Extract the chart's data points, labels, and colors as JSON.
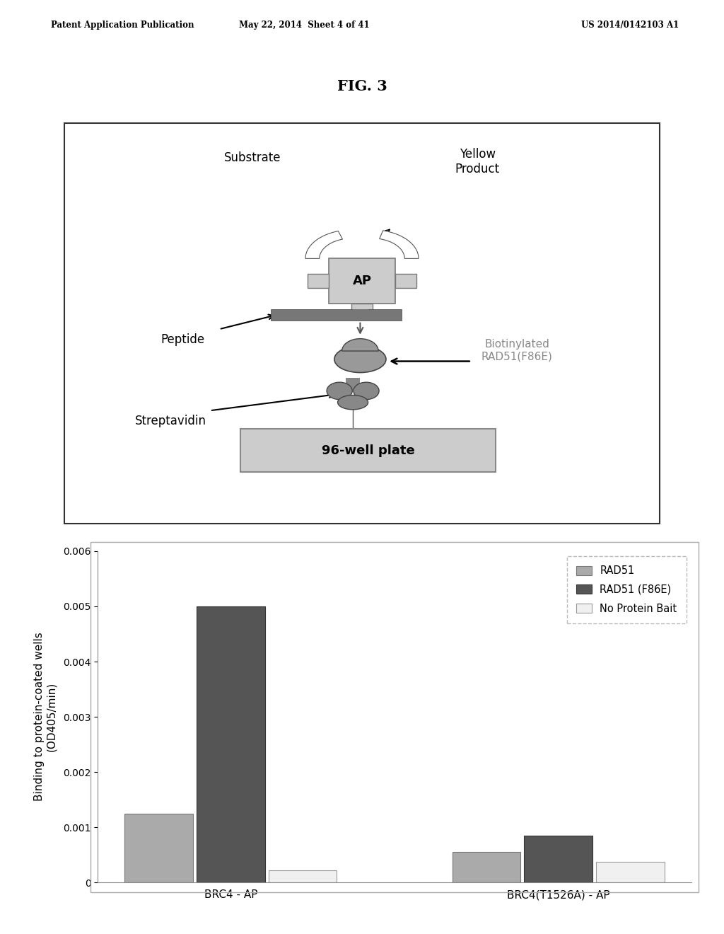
{
  "header_left": "Patent Application Publication",
  "header_center": "May 22, 2014  Sheet 4 of 41",
  "header_right": "US 2014/0142103 A1",
  "fig_title": "FIG. 3",
  "diagram": {
    "substrate_label": "Substrate",
    "yellow_product_label": "Yellow\nProduct",
    "ap_label": "AP",
    "peptide_label": "Peptide",
    "streptavidin_label": "Streptavidin",
    "biotinylated_label": "Biotinylated\nRAD51(F86E)",
    "well_plate_label": "96-well plate"
  },
  "bar_chart": {
    "groups": [
      "BRC4 - AP",
      "BRC4(T1526A) - AP"
    ],
    "series_labels": [
      "RAD51",
      "RAD51 (F86E)",
      "No Protein Bait"
    ],
    "values": [
      [
        0.00125,
        0.005,
        0.00022
      ],
      [
        0.00055,
        0.00085,
        0.00038
      ]
    ],
    "bar_colors": [
      "#aaaaaa",
      "#555555",
      "#f0f0f0"
    ],
    "bar_edge_colors": [
      "#777777",
      "#333333",
      "#999999"
    ],
    "ylabel": "Binding to protein-coated wells\n(OD405/min)",
    "ylim": [
      0,
      0.006
    ],
    "yticks": [
      0,
      0.001,
      0.002,
      0.003,
      0.004,
      0.005,
      0.006
    ],
    "ytick_labels": [
      "0",
      "0.001",
      "0.002",
      "0.003",
      "0.004",
      "0.005",
      "0.006"
    ]
  }
}
